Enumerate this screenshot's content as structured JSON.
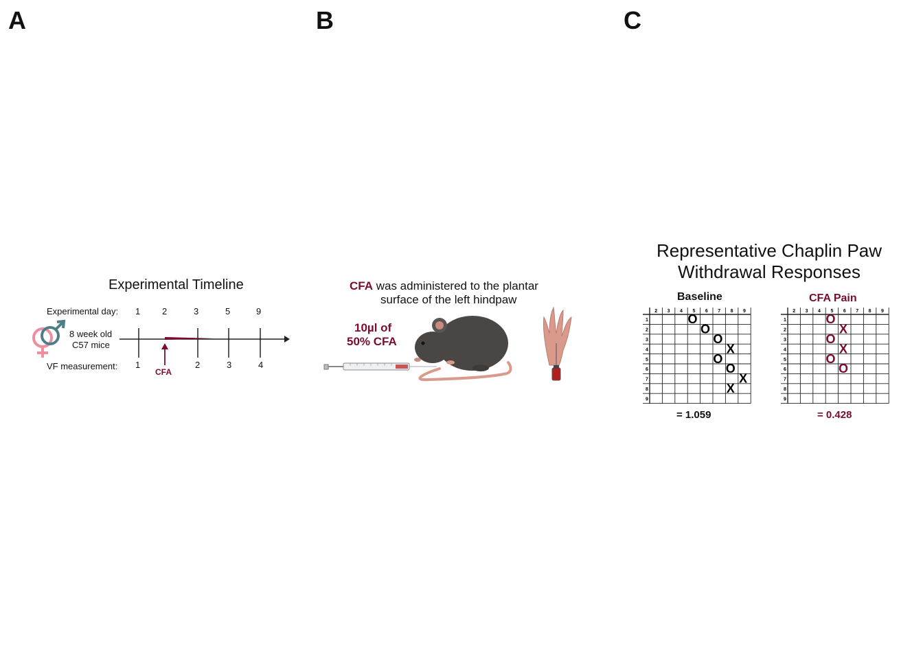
{
  "panels": {
    "a": "A",
    "b": "B",
    "c": "C"
  },
  "panel_a": {
    "title": "Experimental Timeline",
    "exp_day_label": "Experimental day:",
    "exp_days": [
      "1",
      "2",
      "3",
      "5",
      "9"
    ],
    "mice_line1": "8 week old",
    "mice_line2": "C57 mice",
    "vf_label": "VF measurement:",
    "vf_numbers": [
      "1",
      "2",
      "3",
      "4"
    ],
    "cfa_label": "CFA"
  },
  "panel_b": {
    "title_highlight": "CFA",
    "title_rest": " was administered to the plantar",
    "title_line2": "surface of the left hindpaw",
    "dose_line1": "10µl of",
    "dose_line2": "50% CFA"
  },
  "panel_c": {
    "title_line1": "Representative Chaplin Paw",
    "title_line2": "Withdrawal Responses",
    "grids": [
      {
        "title": "Baseline",
        "score": "= 1.059",
        "color": "#000000",
        "col_labels": [
          "2",
          "3",
          "4",
          "5",
          "6",
          "7",
          "8",
          "9"
        ],
        "row_labels": [
          "1",
          "2",
          "3",
          "4",
          "5",
          "6",
          "7",
          "8",
          "9"
        ],
        "marks": [
          {
            "row": 1,
            "col": 5,
            "sym": "O"
          },
          {
            "row": 2,
            "col": 6,
            "sym": "O"
          },
          {
            "row": 3,
            "col": 7,
            "sym": "O"
          },
          {
            "row": 4,
            "col": 8,
            "sym": "X"
          },
          {
            "row": 5,
            "col": 7,
            "sym": "O"
          },
          {
            "row": 6,
            "col": 8,
            "sym": "O"
          },
          {
            "row": 7,
            "col": 9,
            "sym": "X"
          },
          {
            "row": 8,
            "col": 8,
            "sym": "X"
          }
        ]
      },
      {
        "title": "CFA Pain",
        "score": "= 0.428",
        "color": "#7a0c2e",
        "col_labels": [
          "2",
          "3",
          "4",
          "5",
          "6",
          "7",
          "8",
          "9"
        ],
        "row_labels": [
          "1",
          "2",
          "3",
          "4",
          "5",
          "6",
          "7",
          "8",
          "9"
        ],
        "marks": [
          {
            "row": 1,
            "col": 5,
            "sym": "O"
          },
          {
            "row": 2,
            "col": 6,
            "sym": "X"
          },
          {
            "row": 3,
            "col": 5,
            "sym": "O"
          },
          {
            "row": 4,
            "col": 6,
            "sym": "X"
          },
          {
            "row": 5,
            "col": 5,
            "sym": "O"
          },
          {
            "row": 6,
            "col": 6,
            "sym": "O"
          }
        ]
      }
    ]
  },
  "colors": {
    "maroon": "#7a0c2e",
    "female_pink": "#ee8fa0",
    "male_teal": "#4f7f86",
    "mouse_gray": "#4a4644",
    "tail_pink": "#d99a8c"
  },
  "icons": [
    "female-symbol-icon",
    "male-symbol-icon",
    "mouse-illustration",
    "syringe-icon",
    "hindpaw-icon",
    "needle-icon"
  ]
}
